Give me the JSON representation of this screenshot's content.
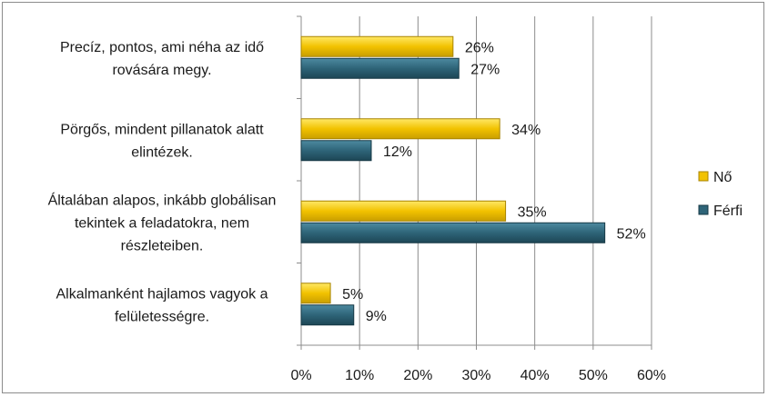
{
  "chart_data": {
    "type": "bar",
    "orientation": "horizontal",
    "categories": [
      [
        "Precíz, pontos, ami néha az idő",
        "rovására megy."
      ],
      [
        "Pörgős, mindent pillanatok alatt",
        "elintézek."
      ],
      [
        "Általában alapos, inkább globálisan",
        "tekintek a feladatokra, nem",
        "részleteiben."
      ],
      [
        "Alkalmanként hajlamos vagyok a",
        "felületességre."
      ]
    ],
    "series": [
      {
        "name": "Nő",
        "values": [
          26,
          34,
          35,
          5
        ],
        "labels": [
          "26%",
          "34%",
          "35%",
          "5%"
        ],
        "color": "#f2c200",
        "edge": "#a88400"
      },
      {
        "name": "Férfi",
        "values": [
          27,
          12,
          52,
          9
        ],
        "labels": [
          "27%",
          "12%",
          "52%",
          "9%"
        ],
        "color": "#2e6478",
        "edge": "#163845"
      }
    ],
    "xlim": [
      0,
      60
    ],
    "xticks": [
      0,
      10,
      20,
      30,
      40,
      50,
      60
    ],
    "xtick_labels": [
      "0%",
      "10%",
      "20%",
      "30%",
      "40%",
      "50%",
      "60%"
    ],
    "grid": true,
    "legend_position": "right",
    "title": "",
    "xlabel": "",
    "ylabel": ""
  }
}
